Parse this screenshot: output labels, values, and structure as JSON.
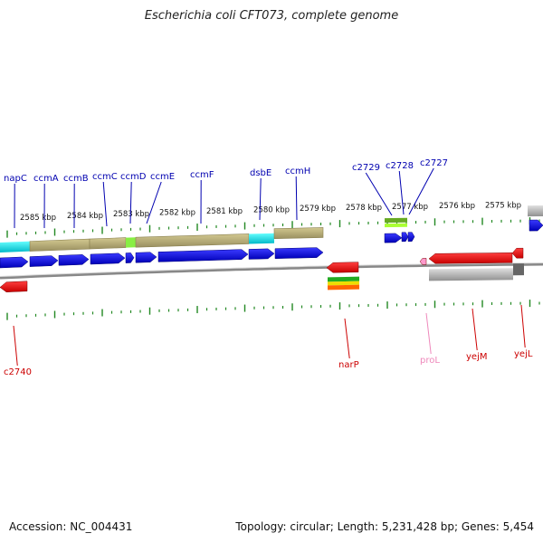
{
  "title": "Escherichia coli CFT073, complete genome",
  "footer": {
    "accession": "Accession: NC_004431",
    "summary": "Topology: circular; Length: 5,231,428 bp; Genes: 5,454"
  },
  "colors": {
    "forward_label": "#0000b0",
    "reverse_label": "#cc0000",
    "trna_label": "#ee88bb",
    "tick": "#228822",
    "forward_gene": "#1010dd",
    "reverse_gene": "#ee1010",
    "feature": "#bcb27a",
    "cds_marker": "#22dddd",
    "backbone": "#888888"
  },
  "scale_labels": [
    "2585 kbp",
    "2584 kbp",
    "2583 kbp",
    "2582 kbp",
    "2581 kbp",
    "2580 kbp",
    "2579 kbp",
    "2578 kbp",
    "2577 kbp",
    "2576 kbp",
    "2575 kbp"
  ],
  "forward_genes": [
    {
      "name": "napC"
    },
    {
      "name": "ccmA"
    },
    {
      "name": "ccmB"
    },
    {
      "name": "ccmC"
    },
    {
      "name": "ccmD"
    },
    {
      "name": "ccmE"
    },
    {
      "name": "ccmF"
    },
    {
      "name": "dsbE"
    },
    {
      "name": "ccmH"
    },
    {
      "name": "c2729"
    },
    {
      "name": "c2728"
    },
    {
      "name": "c2727"
    }
  ],
  "reverse_genes": [
    {
      "name": "c2740"
    },
    {
      "name": "narP"
    },
    {
      "name": "proL"
    },
    {
      "name": "yejM"
    },
    {
      "name": "yejL"
    }
  ]
}
